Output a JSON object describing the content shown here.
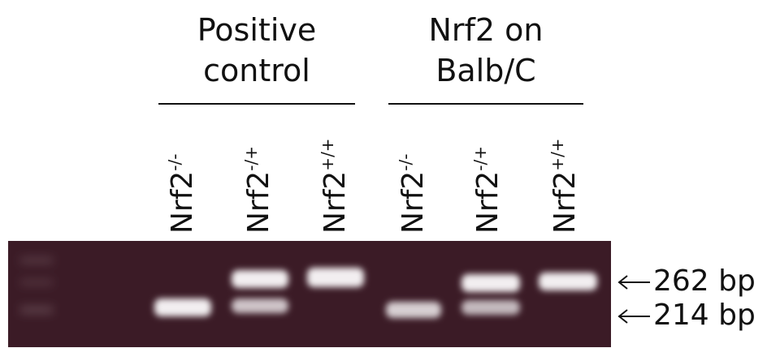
{
  "groups": [
    {
      "title_lines": [
        "Positive",
        "control"
      ],
      "lanes": [
        {
          "label": "Nrf2",
          "superscript": "-/-"
        },
        {
          "label": "Nrf2",
          "superscript": "-/+"
        },
        {
          "label": "Nrf2",
          "superscript": "+/+"
        }
      ]
    },
    {
      "title_lines": [
        "Nrf2 on",
        "Balb/C"
      ],
      "lanes": [
        {
          "label": "Nrf2",
          "superscript": "-/-"
        },
        {
          "label": "Nrf2",
          "superscript": "-/+"
        },
        {
          "label": "Nrf2",
          "superscript": "+/+"
        }
      ]
    }
  ],
  "markers": [
    "262 bp",
    "214 bp"
  ]
}
